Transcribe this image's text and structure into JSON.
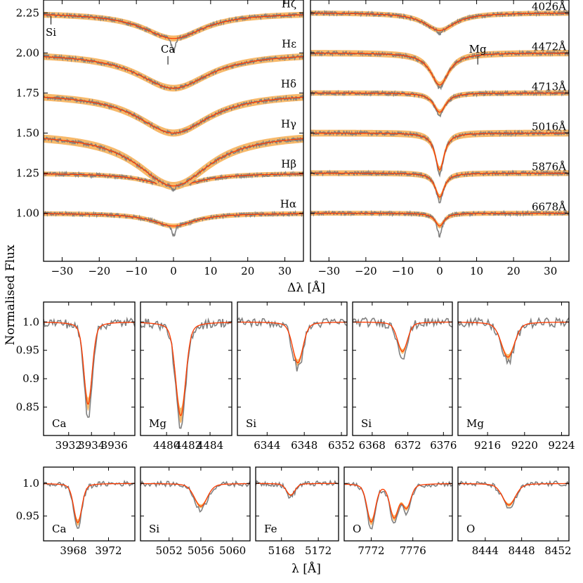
{
  "figure": {
    "ylabel": "Normalised Flux",
    "top_xlabel": "Δλ [Å]",
    "bottom_xlabel": "λ [Å]",
    "colors": {
      "observed": "#808080",
      "model": "#ff3b00",
      "model_band": "#f7b96a",
      "model_line_dark": "#b02020"
    }
  },
  "chart_data": [
    {
      "id": "balmer",
      "type": "line",
      "xlabel": "Δλ [Å]",
      "xlim": [
        -35,
        35
      ],
      "ylim": [
        0.7,
        2.33
      ],
      "xticks": [
        -30,
        -20,
        -10,
        0,
        10,
        20,
        30
      ],
      "yticks": [
        1.0,
        1.25,
        1.5,
        1.75,
        2.0,
        2.25
      ],
      "ytick_labels": [
        "1.00",
        "1.25",
        "1.50",
        "1.75",
        "2.00",
        "2.25"
      ],
      "series": [
        {
          "name": "Hα",
          "offset": 1.0,
          "depth": 0.08,
          "width": 7,
          "core": 0.06
        },
        {
          "name": "Hβ",
          "offset": 1.25,
          "depth": 0.08,
          "width": 9,
          "core": 0.02
        },
        {
          "name": "Hγ",
          "offset": 1.5,
          "depth": 0.33,
          "width": 12,
          "core": 0.02
        },
        {
          "name": "Hδ",
          "offset": 1.75,
          "depth": 0.25,
          "width": 12,
          "core": 0.0
        },
        {
          "name": "Hε",
          "offset": 2.0,
          "depth": 0.22,
          "width": 12,
          "core": 0.0
        },
        {
          "name": "Hζ",
          "offset": 2.25,
          "depth": 0.16,
          "width": 10,
          "core": 0.08
        }
      ],
      "annotations": [
        {
          "text": "Si",
          "x": -33,
          "y": 2.23
        },
        {
          "text": "Ca",
          "x": -1.5,
          "y": 1.98
        }
      ]
    },
    {
      "id": "helium",
      "type": "line",
      "xlabel": "Δλ [Å]",
      "xlim": [
        -35,
        35
      ],
      "ylim": [
        0.7,
        2.33
      ],
      "xticks": [
        -30,
        -20,
        -10,
        0,
        10,
        20,
        30
      ],
      "series": [
        {
          "name": "6678Å",
          "offset": 1.0,
          "depth": 0.08,
          "width": 1.5,
          "core": 0.06
        },
        {
          "name": "5876Å",
          "offset": 1.25,
          "depth": 0.15,
          "width": 1.5,
          "core": 0.03
        },
        {
          "name": "5016Å",
          "offset": 1.5,
          "depth": 0.23,
          "width": 1.5,
          "core": 0.03
        },
        {
          "name": "4713Å",
          "offset": 1.75,
          "depth": 0.12,
          "width": 2.0,
          "core": 0.03
        },
        {
          "name": "4472Å",
          "offset": 2.0,
          "depth": 0.2,
          "width": 3.0,
          "core": 0.02
        },
        {
          "name": "4026Å",
          "offset": 2.25,
          "depth": 0.11,
          "width": 5.0,
          "core": 0.02
        }
      ],
      "annotations": [
        {
          "text": "Mg",
          "x": 10.3,
          "y": 1.98
        }
      ]
    },
    {
      "id": "metal-row-1",
      "type": "line",
      "ylim": [
        0.8,
        1.035
      ],
      "yticks": [
        0.85,
        0.9,
        0.95,
        1.0
      ],
      "ytick_labels": [
        "0.85",
        "0.9",
        "0.95",
        "1.0"
      ],
      "panels": [
        {
          "label": "Ca",
          "xlim": [
            3929.8,
            3937.8
          ],
          "xticks": [
            3932,
            3934,
            3936
          ],
          "center": 3933.7,
          "depth": 0.145,
          "width": 0.35
        },
        {
          "label": "Mg",
          "xlim": [
            4477.6,
            4486.0
          ],
          "xticks": [
            4480,
            4482,
            4484
          ],
          "center": 4481.3,
          "depth": 0.165,
          "width": 0.45
        },
        {
          "label": "Si",
          "xlim": [
            6340.8,
            6352.6
          ],
          "xticks": [
            6344,
            6348,
            6352
          ],
          "center": 6347.3,
          "depth": 0.072,
          "width": 0.55
        },
        {
          "label": "Si",
          "xlim": [
            6365.8,
            6377.0
          ],
          "xticks": [
            6368,
            6372,
            6376
          ],
          "center": 6371.4,
          "depth": 0.052,
          "width": 0.55
        },
        {
          "label": "Mg",
          "xlim": [
            9212.8,
            9224.8
          ],
          "xticks": [
            9216,
            9220,
            9224
          ],
          "center": 9218.2,
          "depth": 0.062,
          "width": 0.7
        }
      ]
    },
    {
      "id": "metal-row-2",
      "type": "line",
      "ylim": [
        0.912,
        1.025
      ],
      "yticks": [
        0.95,
        1.0
      ],
      "ytick_labels": [
        "0.95",
        "1.0"
      ],
      "panels": [
        {
          "label": "Ca",
          "xlim": [
            3964.6,
            3975.0
          ],
          "xticks": [
            3968,
            3972
          ],
          "center": 3968.5,
          "depth": 0.06,
          "width": 0.45
        },
        {
          "label": "Si",
          "xlim": [
            5048.4,
            5062.2
          ],
          "xticks": [
            5052,
            5056,
            5060
          ],
          "center": 5056.0,
          "depth": 0.035,
          "width": 0.8
        },
        {
          "label": "Fe",
          "xlim": [
            5165.2,
            5174.2
          ],
          "xticks": [
            5168,
            5172
          ],
          "center": 5169.0,
          "depth": 0.018,
          "width": 0.45
        },
        {
          "label": "O",
          "xlim": [
            7769.4,
            7779.8
          ],
          "xticks": [
            7772,
            7776
          ],
          "center": 7772.0,
          "depth": 0.058,
          "width": 0.4,
          "extra": [
            [
              7774.2,
              0.05
            ],
            [
              7775.4,
              0.035
            ]
          ]
        },
        {
          "label": "O",
          "xlim": [
            8441.0,
            8453.2
          ],
          "xticks": [
            8444,
            8448,
            8452
          ],
          "center": 8446.6,
          "depth": 0.033,
          "width": 0.7
        }
      ]
    }
  ]
}
